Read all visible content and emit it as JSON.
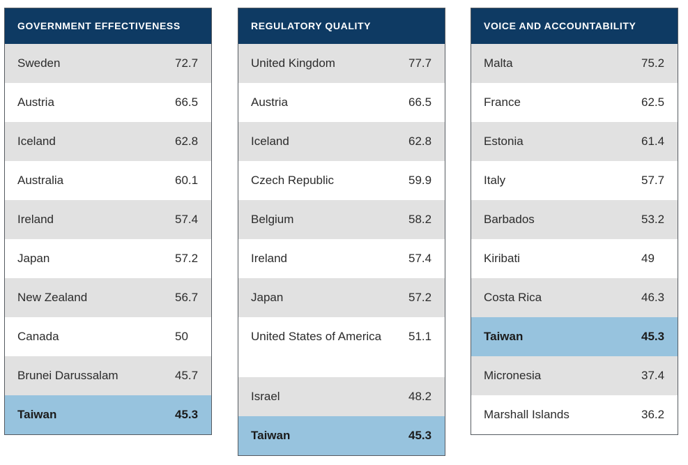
{
  "tables": [
    {
      "title": "GOVERNMENT EFFECTIVENESS",
      "rows": [
        {
          "country": "Sweden",
          "value": "72.7"
        },
        {
          "country": "Austria",
          "value": "66.5"
        },
        {
          "country": "Iceland",
          "value": "62.8"
        },
        {
          "country": "Australia",
          "value": "60.1"
        },
        {
          "country": "Ireland",
          "value": "57.4"
        },
        {
          "country": "Japan",
          "value": "57.2"
        },
        {
          "country": "New Zealand",
          "value": "56.7"
        },
        {
          "country": "Canada",
          "value": "50"
        },
        {
          "country": "Brunei Darussalam",
          "value": "45.7"
        },
        {
          "country": "Taiwan",
          "value": "45.3",
          "highlight": true
        }
      ]
    },
    {
      "title": "REGULATORY QUALITY",
      "rows": [
        {
          "country": "United Kingdom",
          "value": "77.7"
        },
        {
          "country": "Austria",
          "value": "66.5"
        },
        {
          "country": "Iceland",
          "value": "62.8"
        },
        {
          "country": "Czech Republic",
          "value": "59.9"
        },
        {
          "country": "Belgium",
          "value": "58.2"
        },
        {
          "country": "Ireland",
          "value": "57.4"
        },
        {
          "country": "Japan",
          "value": "57.2"
        },
        {
          "country": "United States of America",
          "value": "51.1"
        },
        {
          "country": "Israel",
          "value": "48.2"
        },
        {
          "country": "Taiwan",
          "value": "45.3",
          "highlight": true
        }
      ]
    },
    {
      "title": "VOICE AND ACCOUNTABILITY",
      "rows": [
        {
          "country": "Malta",
          "value": "75.2"
        },
        {
          "country": "France",
          "value": "62.5"
        },
        {
          "country": "Estonia",
          "value": "61.4"
        },
        {
          "country": "Italy",
          "value": "57.7"
        },
        {
          "country": "Barbados",
          "value": "53.2"
        },
        {
          "country": "Kiribati",
          "value": "49"
        },
        {
          "country": "Costa Rica",
          "value": "46.3"
        },
        {
          "country": "Taiwan",
          "value": "45.3",
          "highlight": true
        },
        {
          "country": "Micronesia",
          "value": "37.4"
        },
        {
          "country": "Marshall Islands",
          "value": "36.2"
        }
      ]
    }
  ],
  "colors": {
    "header_bg": "#0e3a63",
    "row_alt": "#e1e1e1",
    "highlight": "#97c3de"
  }
}
